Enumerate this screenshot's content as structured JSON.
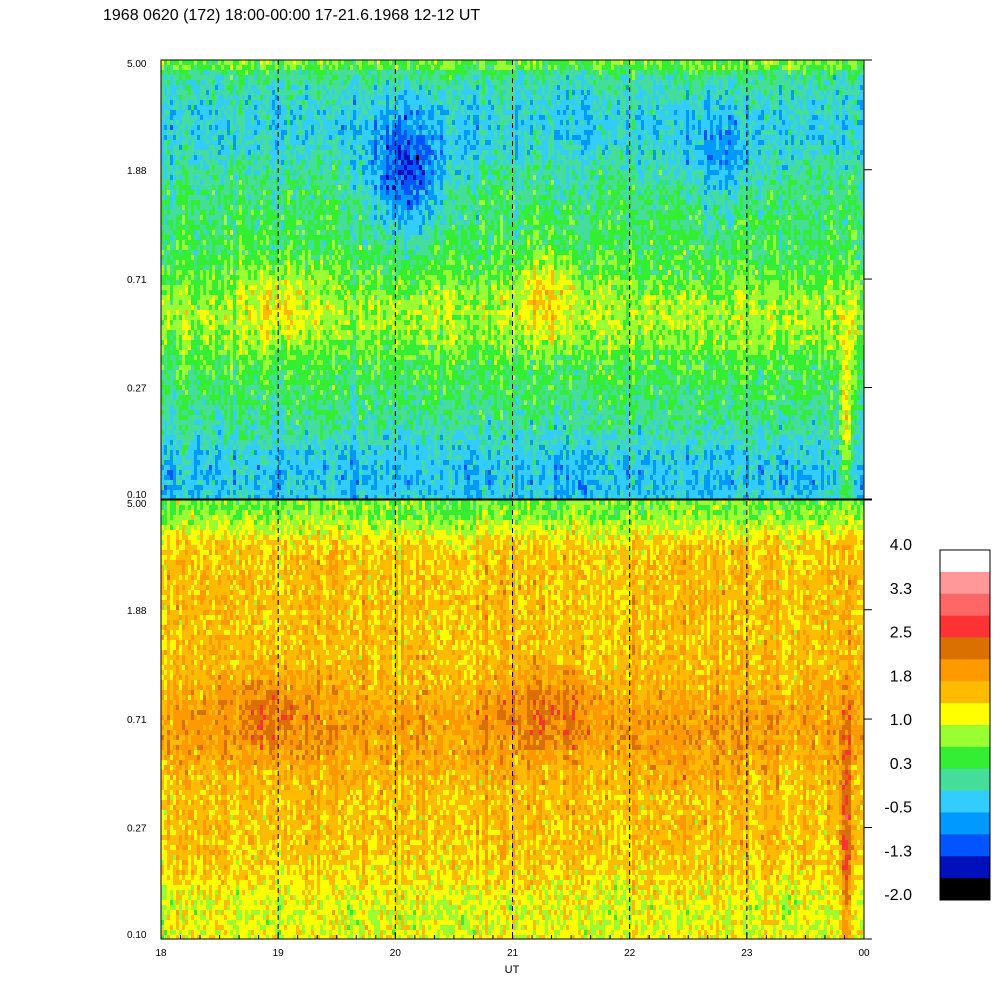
{
  "chart_data": {
    "type": "heatmap",
    "title": "1968 0620 (172) 18:00-00:00 17-21.6.1968  12-12 UT",
    "xlabel": "UT",
    "x_tick_labels": [
      "18",
      "19",
      "20",
      "21",
      "22",
      "23",
      "00"
    ],
    "x_range_hours": [
      18,
      24
    ],
    "panels": [
      {
        "name": "upper",
        "y_tick_labels": [
          "5.00",
          "1.88",
          "0.71",
          "0.27",
          "0.10"
        ],
        "y_scale": "log",
        "ylim": [
          0.1,
          5.0
        ],
        "dominant_values": "about -1.3 to 1.0 (blue / cyan / green / yellow)"
      },
      {
        "name": "lower",
        "y_tick_labels": [
          "5.00",
          "1.88",
          "0.71",
          "0.27",
          "0.10"
        ],
        "y_scale": "log",
        "ylim": [
          0.1,
          5.0
        ],
        "dominant_values": "about 1.0 to 2.5 (yellow / orange / red)"
      }
    ],
    "dashed_vertical_lines_at_hours": [
      19,
      20,
      21,
      22,
      23
    ],
    "colorbar": {
      "labels": [
        "4.0",
        "3.3",
        "2.5",
        "1.8",
        "1.0",
        "0.3",
        "-0.5",
        "-1.3",
        "-2.0"
      ],
      "range": [
        -2.0,
        4.0
      ],
      "colors_top_to_bottom": [
        "#ffffff",
        "#ff9999",
        "#ff6666",
        "#ff3333",
        "#d97000",
        "#ff9900",
        "#ffbb00",
        "#ffff00",
        "#99ff33",
        "#33ee33",
        "#44dd99",
        "#33ccff",
        "#0099ff",
        "#0055ff",
        "#0011bb",
        "#000000"
      ]
    }
  }
}
